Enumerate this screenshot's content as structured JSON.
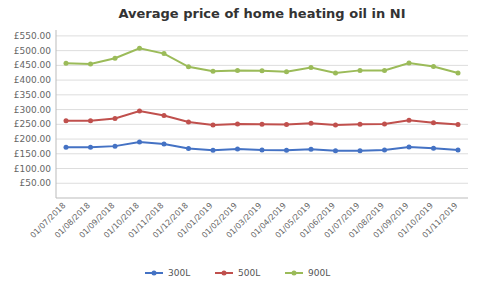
{
  "chart_data": {
    "type": "line",
    "title": "Average price of home heating oil in NI",
    "categories": [
      "01/07/2018",
      "01/08/2018",
      "01/09/2018",
      "01/10/2018",
      "01/11/2018",
      "01/12/2018",
      "01/01/2019",
      "01/02/2019",
      "01/03/2019",
      "01/04/2019",
      "01/05/2019",
      "01/06/2019",
      "01/07/2019",
      "01/08/2019",
      "01/09/2019",
      "01/10/2019",
      "01/11/2019"
    ],
    "series": [
      {
        "name": "300L",
        "color": "#4472C4",
        "values": [
          172,
          172,
          176,
          190,
          183,
          168,
          162,
          166,
          163,
          162,
          165,
          160,
          160,
          163,
          173,
          169,
          163
        ]
      },
      {
        "name": "500L",
        "color": "#C0504D",
        "values": [
          262,
          262,
          270,
          295,
          280,
          258,
          248,
          251,
          250,
          249,
          254,
          248,
          250,
          251,
          264,
          255,
          249
        ]
      },
      {
        "name": "900L",
        "color": "#9BBB59",
        "values": [
          457,
          455,
          474,
          508,
          490,
          445,
          430,
          433,
          432,
          428,
          443,
          424,
          433,
          433,
          458,
          446,
          424
        ]
      }
    ],
    "ylim": [
      0,
      570
    ],
    "yticks": [
      {
        "value": 50,
        "label": "£50.00"
      },
      {
        "value": 100,
        "label": "£100.00"
      },
      {
        "value": 150,
        "label": "£150.00"
      },
      {
        "value": 200,
        "label": "£200.00"
      },
      {
        "value": 250,
        "label": "£250.00"
      },
      {
        "value": 300,
        "label": "£300.00"
      },
      {
        "value": 350,
        "label": "£350.00"
      },
      {
        "value": 400,
        "label": "£400.00"
      },
      {
        "value": 450,
        "label": "£450.00"
      },
      {
        "value": 500,
        "label": "£500.00"
      },
      {
        "value": 550,
        "label": "£550.00"
      }
    ],
    "grid": true,
    "legend": "bottom",
    "marker": "circle"
  }
}
